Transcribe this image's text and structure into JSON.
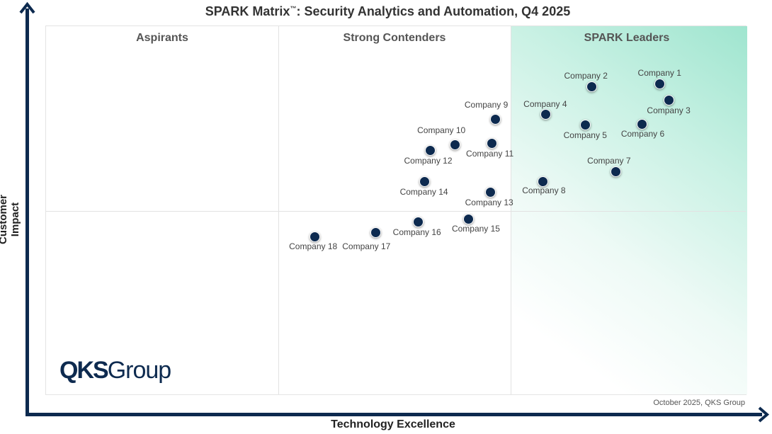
{
  "chart_data": {
    "type": "scatter",
    "title": "SPARK Matrix",
    "title_mark": "™",
    "title_rest": ": Security Analytics and Automation, Q4 2025",
    "xlabel": "Technology Excellence",
    "ylabel": "Customer Impact",
    "xlim": [
      0,
      100
    ],
    "ylim": [
      0,
      100
    ],
    "grid": false,
    "quadrants": [
      "Aspirants",
      "Strong Contenders",
      "SPARK Leaders"
    ],
    "dot_color": "#0d2a4f",
    "leader_color": "#9fe5cf",
    "points": [
      {
        "name": "Company 1",
        "x": 87.6,
        "y": 84.3
      },
      {
        "name": "Company 2",
        "x": 77.9,
        "y": 83.5
      },
      {
        "name": "Company 3",
        "x": 88.9,
        "y": 79.9
      },
      {
        "name": "Company 4",
        "x": 71.3,
        "y": 76.1
      },
      {
        "name": "Company 5",
        "x": 77.0,
        "y": 73.2
      },
      {
        "name": "Company 6",
        "x": 85.0,
        "y": 73.4
      },
      {
        "name": "Company 7",
        "x": 81.3,
        "y": 60.5
      },
      {
        "name": "Company 8",
        "x": 70.9,
        "y": 57.9
      },
      {
        "name": "Company 9",
        "x": 64.1,
        "y": 74.7
      },
      {
        "name": "Company 10",
        "x": 58.4,
        "y": 67.8
      },
      {
        "name": "Company 11",
        "x": 63.6,
        "y": 68.2
      },
      {
        "name": "Company 12",
        "x": 54.8,
        "y": 66.3
      },
      {
        "name": "Company 13",
        "x": 63.4,
        "y": 55.0
      },
      {
        "name": "Company 14",
        "x": 54.0,
        "y": 57.9
      },
      {
        "name": "Company 15",
        "x": 60.3,
        "y": 47.7
      },
      {
        "name": "Company 16",
        "x": 53.1,
        "y": 46.9
      },
      {
        "name": "Company 17",
        "x": 47.1,
        "y": 44.1
      },
      {
        "name": "Company 18",
        "x": 38.4,
        "y": 43.0
      }
    ]
  },
  "logo": {
    "bold": "QKS",
    "rest": "Group"
  },
  "footnote": "October 2025, QKS Group"
}
